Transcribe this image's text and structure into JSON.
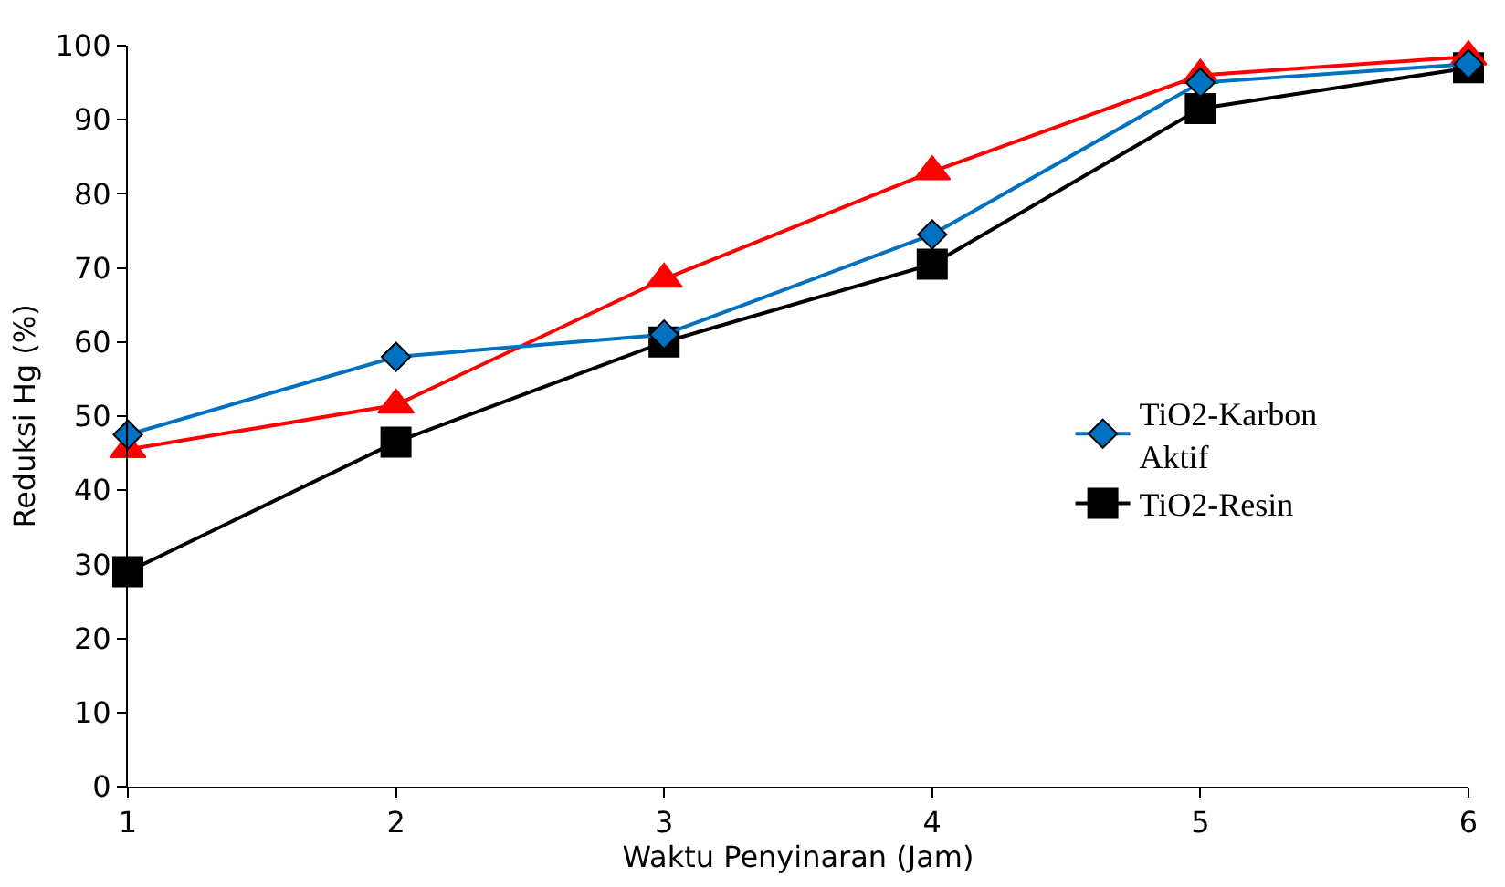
{
  "chart_data": {
    "type": "line",
    "xlabel": "Waktu Penyinaran (Jam)",
    "ylabel": "Reduksi Hg (%)",
    "x": [
      1,
      2,
      3,
      4,
      5,
      6
    ],
    "series": [
      {
        "name": "TiO2-Karbon Aktif",
        "color": "#0070c0",
        "marker": "diamond",
        "values": [
          47.5,
          58,
          61,
          74.5,
          95,
          97.5
        ]
      },
      {
        "color": "#ff0000",
        "marker": "triangle",
        "values": [
          45.5,
          51.5,
          68.5,
          83,
          96,
          98.5
        ]
      },
      {
        "name": "TiO2-Resin",
        "color": "#000000",
        "marker": "square",
        "values": [
          29,
          46.5,
          60,
          70.5,
          91.5,
          97
        ]
      }
    ],
    "xlim": [
      1,
      6
    ],
    "xticks": [
      1,
      2,
      3,
      4,
      5,
      6
    ],
    "ylim": [
      0,
      100
    ],
    "yticks": [
      0,
      10,
      20,
      30,
      40,
      50,
      60,
      70,
      80,
      90,
      100
    ],
    "legend": "right",
    "line_style": "solid"
  }
}
